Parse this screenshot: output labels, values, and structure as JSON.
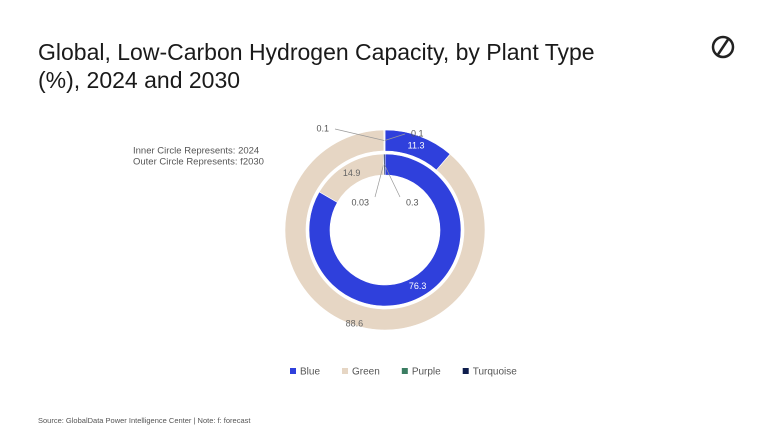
{
  "chart_data": {
    "type": "nested-donut",
    "title": [
      "Global, Low-Carbon Hydrogen Capacity, by Plant Type",
      "(%), 2024 and 2030"
    ],
    "annotations": [
      "Inner Circle Represents: 2024",
      "Outer Circle Represents: f2030"
    ],
    "categories": [
      "Blue",
      "Green",
      "Purple",
      "Turquoise"
    ],
    "colors": [
      "#2f40dc",
      "#e6d6c4",
      "#3b7d62",
      "#0e1d4d"
    ],
    "rings": [
      {
        "values": [
          76.3,
          14.9,
          0.03,
          0.3
        ]
      },
      {
        "values": [
          11.3,
          88.6,
          0.1,
          0.1
        ]
      }
    ],
    "source": "Source: GlobalData Power Intelligence Center | Note: f: forecast"
  }
}
